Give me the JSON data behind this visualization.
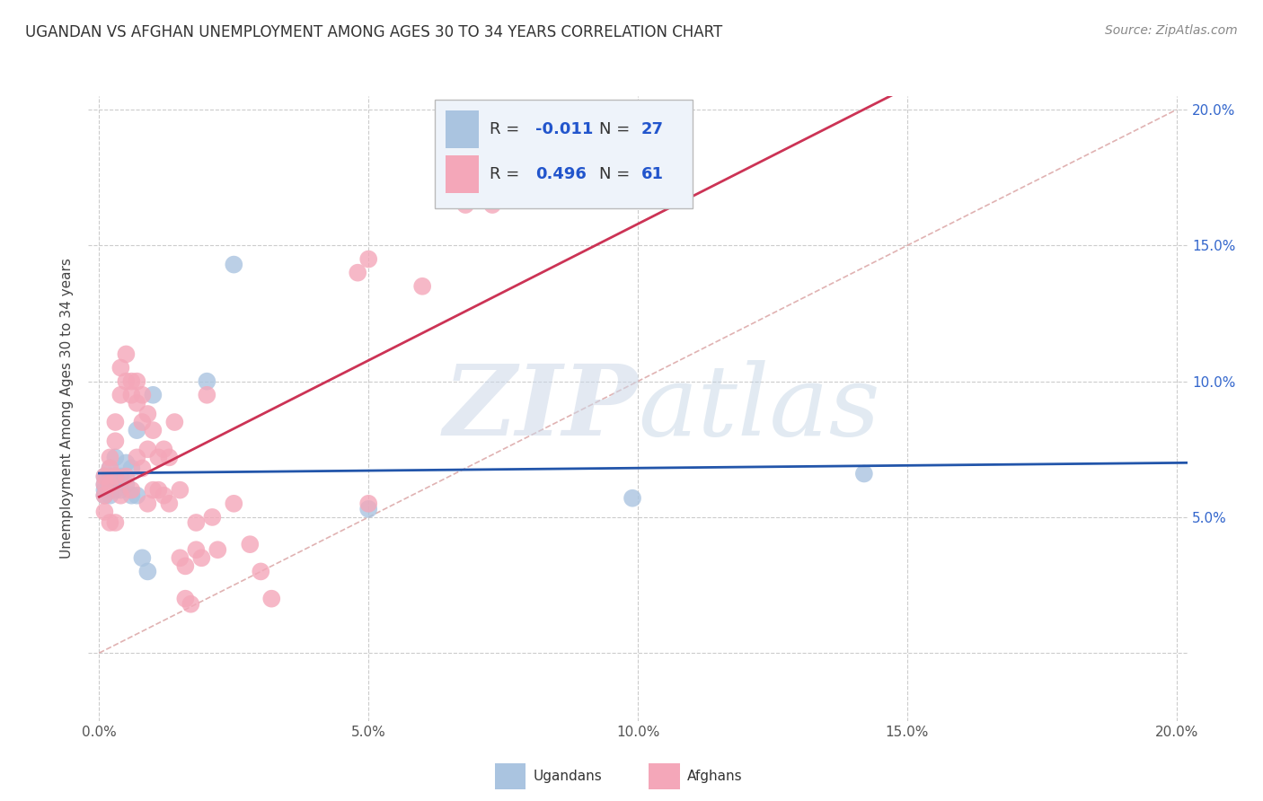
{
  "title": "UGANDAN VS AFGHAN UNEMPLOYMENT AMONG AGES 30 TO 34 YEARS CORRELATION CHART",
  "source": "Source: ZipAtlas.com",
  "ylabel": "Unemployment Among Ages 30 to 34 years",
  "xlim": [
    -0.002,
    0.202
  ],
  "ylim": [
    -0.025,
    0.205
  ],
  "ugandan_color": "#aac4e0",
  "afghan_color": "#f4a7b9",
  "ugandan_line_color": "#2255aa",
  "afghan_line_color": "#cc3355",
  "diagonal_color": "#ddaaaa",
  "ugandan_R": -0.011,
  "ugandan_N": 27,
  "afghan_R": 0.496,
  "afghan_N": 61,
  "ugandan_x": [
    0.001,
    0.001,
    0.001,
    0.002,
    0.002,
    0.002,
    0.003,
    0.003,
    0.004,
    0.004,
    0.005,
    0.005,
    0.006,
    0.006,
    0.007,
    0.007,
    0.008,
    0.009,
    0.01,
    0.02,
    0.025,
    0.05,
    0.099,
    0.142,
    0.001,
    0.002,
    0.003
  ],
  "ugandan_y": [
    0.065,
    0.062,
    0.058,
    0.068,
    0.065,
    0.06,
    0.072,
    0.065,
    0.065,
    0.06,
    0.07,
    0.062,
    0.068,
    0.058,
    0.082,
    0.058,
    0.035,
    0.03,
    0.095,
    0.1,
    0.143,
    0.053,
    0.057,
    0.066,
    0.06,
    0.058,
    0.06
  ],
  "afghan_x": [
    0.001,
    0.001,
    0.001,
    0.001,
    0.002,
    0.002,
    0.002,
    0.002,
    0.003,
    0.003,
    0.003,
    0.003,
    0.004,
    0.004,
    0.004,
    0.005,
    0.005,
    0.005,
    0.006,
    0.006,
    0.006,
    0.007,
    0.007,
    0.007,
    0.008,
    0.008,
    0.008,
    0.009,
    0.009,
    0.009,
    0.01,
    0.01,
    0.011,
    0.011,
    0.012,
    0.012,
    0.013,
    0.013,
    0.014,
    0.015,
    0.015,
    0.016,
    0.016,
    0.017,
    0.018,
    0.018,
    0.019,
    0.02,
    0.021,
    0.022,
    0.025,
    0.028,
    0.03,
    0.032,
    0.048,
    0.05,
    0.05,
    0.06,
    0.068,
    0.07,
    0.073
  ],
  "afghan_y": [
    0.065,
    0.062,
    0.058,
    0.052,
    0.072,
    0.068,
    0.062,
    0.048,
    0.085,
    0.078,
    0.065,
    0.048,
    0.105,
    0.095,
    0.058,
    0.11,
    0.1,
    0.065,
    0.1,
    0.095,
    0.06,
    0.1,
    0.092,
    0.072,
    0.095,
    0.085,
    0.068,
    0.088,
    0.075,
    0.055,
    0.082,
    0.06,
    0.072,
    0.06,
    0.075,
    0.058,
    0.072,
    0.055,
    0.085,
    0.06,
    0.035,
    0.032,
    0.02,
    0.018,
    0.048,
    0.038,
    0.035,
    0.095,
    0.05,
    0.038,
    0.055,
    0.04,
    0.03,
    0.02,
    0.14,
    0.145,
    0.055,
    0.135,
    0.165,
    0.17,
    0.165
  ],
  "background_color": "#ffffff",
  "grid_color": "#cccccc",
  "xtick_vals": [
    0.0,
    0.05,
    0.1,
    0.15,
    0.2
  ],
  "ytick_vals": [
    0.0,
    0.05,
    0.1,
    0.15,
    0.2
  ],
  "xtick_labels": [
    "0.0%",
    "5.0%",
    "10.0%",
    "15.0%",
    "20.0%"
  ],
  "ytick_labels_right": [
    "",
    "5.0%",
    "10.0%",
    "15.0%",
    "20.0%"
  ]
}
